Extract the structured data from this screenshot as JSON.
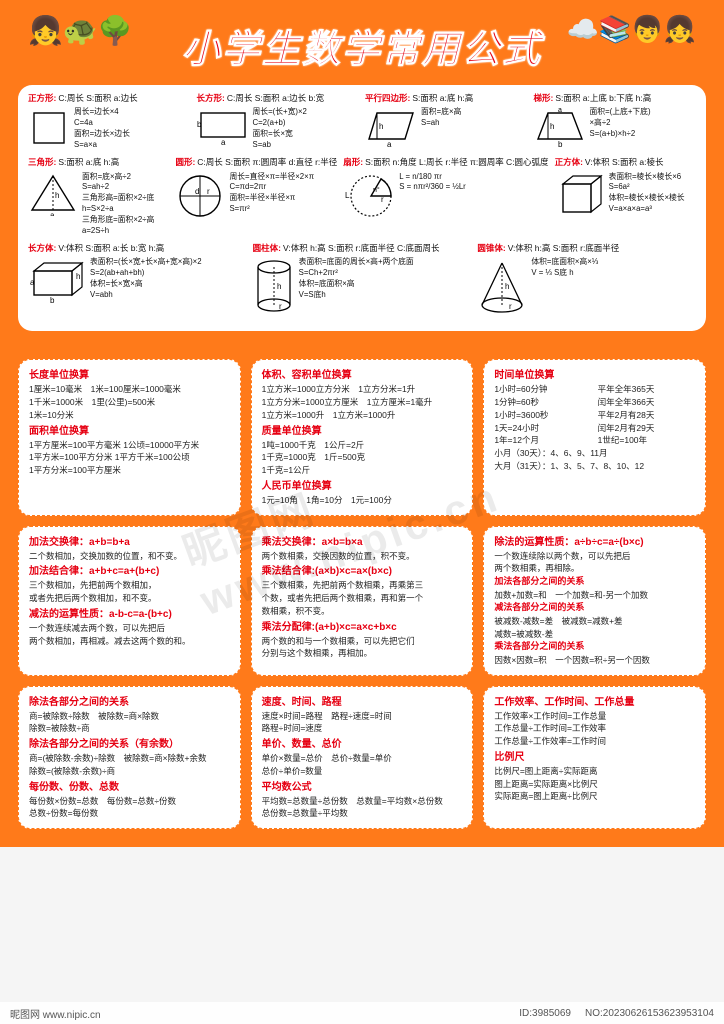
{
  "title": "小学生数学常用公式",
  "colors": {
    "bg": "#ff7a1a",
    "accent": "#e60012",
    "panel": "#ffffff"
  },
  "shapes": {
    "row1": [
      {
        "name": "正方形:",
        "legend": "C:周长 S:面积 a:边长",
        "lines": [
          "周长=边长×4",
          "C=4a",
          "面积=边长×边长",
          "S=a×a"
        ]
      },
      {
        "name": "长方形:",
        "legend": "C:周长 S:面积 a:边长 b:宽",
        "lines": [
          "周长=(长+宽)×2",
          "C=2(a+b)",
          "面积=长×宽",
          "S=ab"
        ]
      },
      {
        "name": "平行四边形:",
        "legend": "S:面积 a:底 h:高",
        "lines": [
          "面积=底×高",
          "S=ah"
        ]
      },
      {
        "name": "梯形:",
        "legend": "S:面积 a:上底 b:下底 h:高",
        "lines": [
          "面积=(上底+下底)",
          "×高÷2",
          "S=(a+b)×h÷2"
        ]
      }
    ],
    "row2": [
      {
        "name": "三角形:",
        "legend": "S:面积 a:底 h:高",
        "lines": [
          "面积=底×高÷2",
          "S=ah÷2",
          "三角形高=面积×2÷底",
          "h=S×2÷a",
          "三角形底=面积×2÷高",
          "a=2S÷h"
        ]
      },
      {
        "name": "圆形:",
        "legend": "C:周长 S:面积 π:圆周率 d:直径 r:半径",
        "lines": [
          "周长=直径×π=半径×2×π",
          "C=πd=2πr",
          "面积=半径×半径×π",
          "S=πr²"
        ]
      },
      {
        "name": "扇形:",
        "legend": "S:面积 n:角度 L:周长 r:半径 π:圆周率 C:圆心弧度",
        "lines": [
          "L = n/180 πr",
          "S = nπr²/360 = ½Lr"
        ]
      },
      {
        "name": "正方体:",
        "legend": "V:体积 S:面积 a:棱长",
        "lines": [
          "表面积=棱长×棱长×6",
          "S=6a²",
          "体积=棱长×棱长×棱长",
          "V=a×a×a=a³"
        ]
      }
    ],
    "row3": [
      {
        "name": "长方体:",
        "legend": "V:体积 S:面积 a:长 b:宽 h:高",
        "lines": [
          "表面积=(长×宽+长×高+宽×高)×2",
          "S=2(ab+ah+bh)",
          "体积=长×宽×高",
          "V=abh"
        ]
      },
      {
        "name": "圆柱体:",
        "legend": "V:体积 h:高 S:面积 r:底面半径 C:底面周长",
        "lines": [
          "表面积=底面的周长×高+两个底面",
          "S=Ch+2πr²",
          "体积=底面积×高",
          "V=S底h"
        ]
      },
      {
        "name": "圆锥体:",
        "legend": "V:体积 h:高 S:面积 r:底面半径",
        "lines": [
          "体积=底面积×高×⅓",
          "V = ⅓ S底 h"
        ]
      }
    ]
  },
  "cards": [
    {
      "blocks": [
        {
          "h": "长度单位换算",
          "lines": [
            "1厘米=10毫米　1米=100厘米=1000毫米",
            "1千米=1000米　1里(公里)=500米",
            "1米=10分米"
          ]
        },
        {
          "h": "面积单位换算",
          "lines": [
            "1平方厘米=100平方毫米 1公顷=10000平方米",
            "1平方米=100平方分米 1平方千米=100公顷",
            "1平方分米=100平方厘米"
          ]
        }
      ]
    },
    {
      "blocks": [
        {
          "h": "体积、容积单位换算",
          "lines": [
            "1立方米=1000立方分米　1立方分米=1升",
            "1立方分米=1000立方厘米　1立方厘米=1毫升",
            "1立方米=1000升　1立方米=1000升"
          ]
        },
        {
          "h": "质量单位换算",
          "lines": [
            "1吨=1000千克　1公斤=2斤",
            "1千克=1000克　1斤=500克",
            "1千克=1公斤"
          ]
        },
        {
          "h": "人民币单位换算",
          "lines": [
            "1元=10角　1角=10分　1元=100分"
          ]
        }
      ]
    },
    {
      "blocks": [
        {
          "h": "时间单位换算",
          "twocol": true,
          "lines": [
            "1小时=60分钟",
            "平年全年365天",
            "1分钟=60秒",
            "闰年全年366天",
            "1小时=3600秒",
            "平年2月有28天",
            "1天=24小时",
            "闰年2月有29天",
            "1年=12个月",
            "1世纪=100年"
          ],
          "tail": [
            "小月（30天）：4、6、9、11月",
            "大月（31天）：1、3、5、7、8、10、12"
          ]
        }
      ]
    },
    {
      "blocks": [
        {
          "h": "加法交换律：a+b=b+a",
          "lines": [
            "二个数相加，交换加数的位置，和不变。"
          ]
        },
        {
          "h": "加法结合律：a+b+c=a+(b+c)",
          "lines": [
            "三个数相加，先把前两个数相加，",
            "或者先把后两个数相加，和不变。"
          ]
        },
        {
          "h": "减法的运算性质：a-b-c=a-(b+c)",
          "lines": [
            "一个数连续减去两个数，可以先把后",
            "两个数相加，再相减。减去这两个数的和。"
          ]
        }
      ]
    },
    {
      "blocks": [
        {
          "h": "乘法交换律：a×b=b×a",
          "lines": [
            "两个数相乘，交换因数的位置，积不变。"
          ]
        },
        {
          "h": "乘法结合律:(a×b)×c=a×(b×c)",
          "lines": [
            "三个数相乘，先把前两个数相乘，再乘第三",
            "个数，或者先把后两个数相乘，再和第一个",
            "数相乘，积不变。"
          ]
        },
        {
          "h": "乘法分配律:(a+b)×c=a×c+b×c",
          "lines": [
            "两个数的和与一个数相乘，可以先把它们",
            "分别与这个数相乘，再相加。"
          ]
        }
      ]
    },
    {
      "blocks": [
        {
          "h": "除法的运算性质：a÷b÷c=a÷(b×c)",
          "lines": [
            "一个数连续除以两个数，可以先把后",
            "两个数相乘，再相除。"
          ]
        },
        {
          "sub": "加法各部分之间的关系",
          "lines": [
            "加数+加数=和　一个加数=和-另一个加数"
          ]
        },
        {
          "sub": "减法各部分之间的关系",
          "lines": [
            "被减数-减数=差　被减数=减数+差",
            "减数=被减数-差"
          ]
        },
        {
          "sub": "乘法各部分之间的关系",
          "lines": [
            "因数×因数=积　一个因数=积÷另一个因数"
          ]
        }
      ]
    },
    {
      "blocks": [
        {
          "h": "除法各部分之间的关系",
          "lines": [
            "商=被除数÷除数　被除数=商×除数",
            "除数=被除数÷商"
          ]
        },
        {
          "h": "除法各部分之间的关系（有余数）",
          "lines": [
            "商=(被除数-余数)÷除数　被除数=商×除数+余数",
            "除数=(被除数-余数)÷商"
          ]
        },
        {
          "h": "每份数、份数、总数",
          "lines": [
            "每份数×份数=总数　每份数=总数÷份数",
            "总数÷份数=每份数"
          ]
        }
      ]
    },
    {
      "blocks": [
        {
          "h": "速度、时间、路程",
          "lines": [
            "速度×时间=路程　路程÷速度=时间",
            "路程÷时间=速度"
          ]
        },
        {
          "h": "单价、数量、总价",
          "lines": [
            "单价×数量=总价　总价÷数量=单价",
            "总价÷单价=数量"
          ]
        },
        {
          "h": "平均数公式",
          "lines": [
            "平均数=总数量÷总份数　总数量=平均数×总份数",
            "总份数=总数量÷平均数"
          ]
        }
      ]
    },
    {
      "blocks": [
        {
          "h": "工作效率、工作时间、工作总量",
          "lines": [
            "工作效率×工作时间=工作总量",
            "工作总量÷工作时间=工作效率",
            "工作总量÷工作效率=工作时间"
          ]
        },
        {
          "h": "比例尺",
          "lines": [
            "比例尺=图上距离÷实际距离",
            "图上距离=实际距离×比例尺",
            "实际距离=图上距离÷比例尺"
          ]
        }
      ]
    }
  ],
  "watermark": "昵图网 www.nipic.cn",
  "footer": {
    "site": "昵图网 www.nipic.cn",
    "id": "ID:3985069",
    "no": "NO:20230626153623953104"
  }
}
